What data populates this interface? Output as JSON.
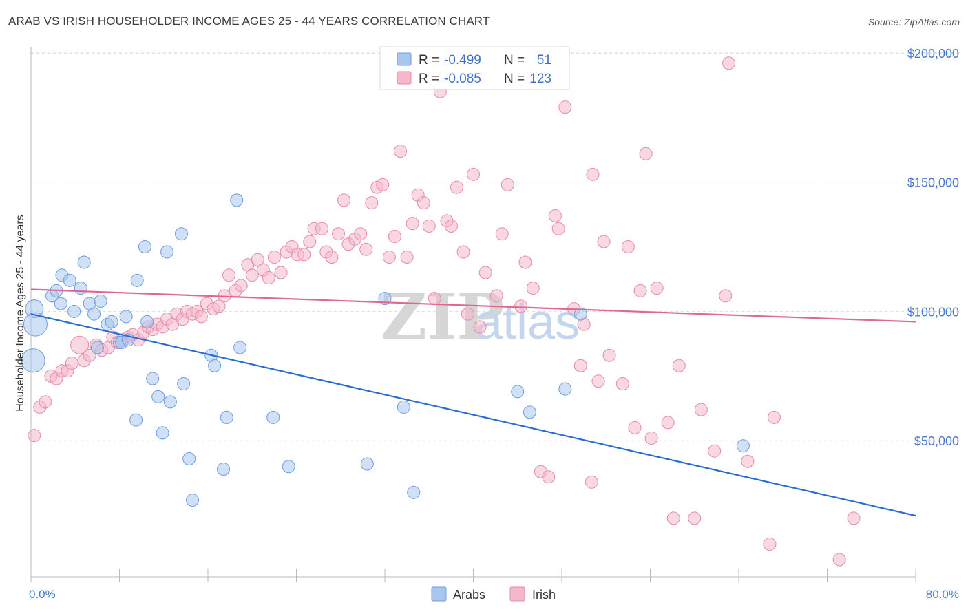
{
  "header": {
    "title": "ARAB VS IRISH HOUSEHOLDER INCOME AGES 25 - 44 YEARS CORRELATION CHART",
    "source": "Source: ZipAtlas.com"
  },
  "watermark": {
    "zip": "ZIP",
    "atlas": "atlas"
  },
  "colors": {
    "arabs_fill": "#a9c6ef",
    "arabs_line": "#2a6dd2",
    "irish_fill": "#f5b8cb",
    "irish_line": "#e06890",
    "grid": "#dddddd",
    "axis_text": "#4a7bd0"
  },
  "legend": {
    "row1": {
      "r_label": "R =",
      "r_value": "-0.499",
      "n_label": "N =",
      "n_value": "51"
    },
    "row2": {
      "r_label": "R =",
      "r_value": "-0.085",
      "n_label": "N =",
      "n_value": "123"
    }
  },
  "bottom_legend": {
    "arabs": "Arabs",
    "irish": "Irish"
  },
  "chart_data": {
    "type": "scatter",
    "title": "ARAB VS IRISH HOUSEHOLDER INCOME AGES 25 - 44 YEARS CORRELATION CHART",
    "ylabel": "Householder Income Ages 25 - 44 years",
    "xlabel": "",
    "x_tick_labels": [
      "0.0%",
      "80.0%"
    ],
    "y_tick_labels": [
      "$50,000",
      "$100,000",
      "$150,000",
      "$200,000"
    ],
    "y_ticks": [
      50000,
      100000,
      150000,
      200000
    ],
    "xlim": [
      0,
      80
    ],
    "ylim": [
      0,
      205000
    ],
    "grid": true,
    "legend_position": "top-center",
    "series": [
      {
        "name": "Arabs",
        "r": -0.499,
        "n": 51,
        "trend": {
          "x": [
            0,
            80
          ],
          "y": [
            99000,
            21000
          ]
        },
        "points": [
          {
            "x": 0.3,
            "y": 101000,
            "s": 2
          },
          {
            "x": 0.4,
            "y": 95000,
            "s": 3
          },
          {
            "x": 0.2,
            "y": 81000,
            "s": 3
          },
          {
            "x": 1.9,
            "y": 106000
          },
          {
            "x": 2.3,
            "y": 108000
          },
          {
            "x": 2.8,
            "y": 114000
          },
          {
            "x": 3.5,
            "y": 112000
          },
          {
            "x": 2.7,
            "y": 103000
          },
          {
            "x": 3.9,
            "y": 100000
          },
          {
            "x": 4.5,
            "y": 109000
          },
          {
            "x": 4.8,
            "y": 119000
          },
          {
            "x": 5.3,
            "y": 103000
          },
          {
            "x": 5.7,
            "y": 99000
          },
          {
            "x": 6.3,
            "y": 104000
          },
          {
            "x": 6.9,
            "y": 95000
          },
          {
            "x": 7.3,
            "y": 96000
          },
          {
            "x": 8.0,
            "y": 88000
          },
          {
            "x": 8.2,
            "y": 88000
          },
          {
            "x": 8.6,
            "y": 98000
          },
          {
            "x": 8.8,
            "y": 89000
          },
          {
            "x": 6.0,
            "y": 86000
          },
          {
            "x": 9.6,
            "y": 112000
          },
          {
            "x": 10.3,
            "y": 125000
          },
          {
            "x": 10.5,
            "y": 96000
          },
          {
            "x": 12.3,
            "y": 123000
          },
          {
            "x": 13.6,
            "y": 130000
          },
          {
            "x": 18.6,
            "y": 143000
          },
          {
            "x": 11.0,
            "y": 74000
          },
          {
            "x": 11.5,
            "y": 67000
          },
          {
            "x": 12.6,
            "y": 65000
          },
          {
            "x": 13.8,
            "y": 72000
          },
          {
            "x": 9.5,
            "y": 58000
          },
          {
            "x": 11.9,
            "y": 53000
          },
          {
            "x": 14.3,
            "y": 43000
          },
          {
            "x": 14.6,
            "y": 27000
          },
          {
            "x": 16.3,
            "y": 83000
          },
          {
            "x": 16.6,
            "y": 79000
          },
          {
            "x": 18.9,
            "y": 86000
          },
          {
            "x": 17.7,
            "y": 59000
          },
          {
            "x": 17.4,
            "y": 39000
          },
          {
            "x": 21.9,
            "y": 59000
          },
          {
            "x": 23.3,
            "y": 40000
          },
          {
            "x": 30.4,
            "y": 41000
          },
          {
            "x": 32.0,
            "y": 105000
          },
          {
            "x": 33.7,
            "y": 63000
          },
          {
            "x": 34.6,
            "y": 30000
          },
          {
            "x": 44.0,
            "y": 69000
          },
          {
            "x": 45.1,
            "y": 61000
          },
          {
            "x": 48.3,
            "y": 70000
          },
          {
            "x": 49.7,
            "y": 99000
          },
          {
            "x": 64.4,
            "y": 48000
          }
        ]
      },
      {
        "name": "Irish",
        "r": -0.085,
        "n": 123,
        "trend": {
          "x": [
            0,
            80
          ],
          "y": [
            108500,
            96000
          ]
        },
        "points": [
          {
            "x": 0.3,
            "y": 52000
          },
          {
            "x": 0.8,
            "y": 63000
          },
          {
            "x": 1.3,
            "y": 65000
          },
          {
            "x": 1.8,
            "y": 75000
          },
          {
            "x": 2.3,
            "y": 74000
          },
          {
            "x": 2.8,
            "y": 77000
          },
          {
            "x": 3.3,
            "y": 77000
          },
          {
            "x": 3.7,
            "y": 80000
          },
          {
            "x": 4.4,
            "y": 87000,
            "s": 2
          },
          {
            "x": 4.8,
            "y": 81000
          },
          {
            "x": 5.3,
            "y": 83000
          },
          {
            "x": 5.9,
            "y": 87000
          },
          {
            "x": 6.4,
            "y": 85000
          },
          {
            "x": 7.0,
            "y": 86000
          },
          {
            "x": 7.4,
            "y": 90000
          },
          {
            "x": 7.8,
            "y": 88000
          },
          {
            "x": 8.3,
            "y": 89000
          },
          {
            "x": 8.8,
            "y": 90000
          },
          {
            "x": 9.2,
            "y": 91000
          },
          {
            "x": 9.7,
            "y": 89000
          },
          {
            "x": 10.2,
            "y": 92000
          },
          {
            "x": 10.6,
            "y": 94000
          },
          {
            "x": 11.0,
            "y": 93000
          },
          {
            "x": 11.4,
            "y": 95000
          },
          {
            "x": 11.9,
            "y": 94000
          },
          {
            "x": 12.3,
            "y": 97000
          },
          {
            "x": 12.8,
            "y": 95000
          },
          {
            "x": 13.2,
            "y": 99000
          },
          {
            "x": 13.7,
            "y": 97000
          },
          {
            "x": 14.1,
            "y": 100000
          },
          {
            "x": 14.6,
            "y": 99000
          },
          {
            "x": 15.0,
            "y": 100000
          },
          {
            "x": 15.4,
            "y": 98000
          },
          {
            "x": 15.9,
            "y": 103000
          },
          {
            "x": 16.5,
            "y": 101000
          },
          {
            "x": 17.0,
            "y": 102000
          },
          {
            "x": 17.5,
            "y": 106000
          },
          {
            "x": 17.9,
            "y": 114000
          },
          {
            "x": 18.5,
            "y": 108000
          },
          {
            "x": 19.0,
            "y": 110000
          },
          {
            "x": 19.6,
            "y": 118000
          },
          {
            "x": 20.0,
            "y": 114000
          },
          {
            "x": 20.5,
            "y": 120000
          },
          {
            "x": 21.0,
            "y": 116000
          },
          {
            "x": 21.5,
            "y": 113000
          },
          {
            "x": 22.0,
            "y": 121000
          },
          {
            "x": 22.6,
            "y": 115000
          },
          {
            "x": 23.1,
            "y": 123000
          },
          {
            "x": 23.6,
            "y": 125000
          },
          {
            "x": 24.1,
            "y": 122000
          },
          {
            "x": 24.7,
            "y": 122000
          },
          {
            "x": 25.2,
            "y": 127000
          },
          {
            "x": 25.6,
            "y": 132000
          },
          {
            "x": 26.3,
            "y": 132000
          },
          {
            "x": 26.7,
            "y": 123000
          },
          {
            "x": 27.2,
            "y": 121000
          },
          {
            "x": 27.8,
            "y": 130000
          },
          {
            "x": 28.3,
            "y": 143000
          },
          {
            "x": 28.7,
            "y": 126000
          },
          {
            "x": 29.3,
            "y": 128000
          },
          {
            "x": 29.8,
            "y": 130000
          },
          {
            "x": 30.3,
            "y": 124000
          },
          {
            "x": 30.8,
            "y": 142000
          },
          {
            "x": 31.3,
            "y": 148000
          },
          {
            "x": 31.8,
            "y": 149000
          },
          {
            "x": 32.4,
            "y": 121000
          },
          {
            "x": 32.9,
            "y": 129000
          },
          {
            "x": 33.4,
            "y": 162000
          },
          {
            "x": 34.0,
            "y": 121000
          },
          {
            "x": 34.5,
            "y": 134000
          },
          {
            "x": 35.0,
            "y": 145000
          },
          {
            "x": 35.5,
            "y": 142000
          },
          {
            "x": 36.0,
            "y": 133000
          },
          {
            "x": 36.5,
            "y": 105000
          },
          {
            "x": 37.0,
            "y": 185000
          },
          {
            "x": 37.6,
            "y": 135000
          },
          {
            "x": 38.0,
            "y": 133000
          },
          {
            "x": 38.5,
            "y": 148000
          },
          {
            "x": 39.1,
            "y": 123000
          },
          {
            "x": 39.5,
            "y": 99000
          },
          {
            "x": 40.0,
            "y": 153000
          },
          {
            "x": 40.6,
            "y": 94000
          },
          {
            "x": 41.1,
            "y": 115000
          },
          {
            "x": 41.6,
            "y": 192000
          },
          {
            "x": 42.1,
            "y": 106000
          },
          {
            "x": 42.6,
            "y": 130000
          },
          {
            "x": 43.1,
            "y": 149000
          },
          {
            "x": 44.3,
            "y": 102000
          },
          {
            "x": 44.7,
            "y": 119000
          },
          {
            "x": 45.4,
            "y": 109000
          },
          {
            "x": 46.1,
            "y": 38000
          },
          {
            "x": 46.8,
            "y": 36000
          },
          {
            "x": 47.4,
            "y": 137000
          },
          {
            "x": 47.7,
            "y": 132000
          },
          {
            "x": 48.3,
            "y": 179000
          },
          {
            "x": 49.1,
            "y": 101000
          },
          {
            "x": 49.7,
            "y": 79000
          },
          {
            "x": 50.0,
            "y": 95000
          },
          {
            "x": 50.7,
            "y": 34000
          },
          {
            "x": 50.8,
            "y": 153000
          },
          {
            "x": 51.3,
            "y": 73000
          },
          {
            "x": 51.8,
            "y": 127000
          },
          {
            "x": 52.3,
            "y": 83000
          },
          {
            "x": 53.5,
            "y": 72000
          },
          {
            "x": 54.0,
            "y": 125000
          },
          {
            "x": 54.6,
            "y": 55000
          },
          {
            "x": 55.1,
            "y": 108000
          },
          {
            "x": 55.6,
            "y": 161000
          },
          {
            "x": 56.1,
            "y": 51000
          },
          {
            "x": 56.6,
            "y": 109000
          },
          {
            "x": 57.6,
            "y": 57000
          },
          {
            "x": 58.1,
            "y": 20000
          },
          {
            "x": 58.6,
            "y": 79000
          },
          {
            "x": 60.0,
            "y": 20000
          },
          {
            "x": 60.6,
            "y": 62000
          },
          {
            "x": 61.8,
            "y": 46000
          },
          {
            "x": 62.8,
            "y": 106000
          },
          {
            "x": 63.1,
            "y": 196000
          },
          {
            "x": 64.8,
            "y": 42000
          },
          {
            "x": 66.8,
            "y": 10000
          },
          {
            "x": 67.2,
            "y": 59000
          },
          {
            "x": 73.1,
            "y": 4000
          },
          {
            "x": 74.4,
            "y": 20000
          }
        ]
      }
    ]
  }
}
